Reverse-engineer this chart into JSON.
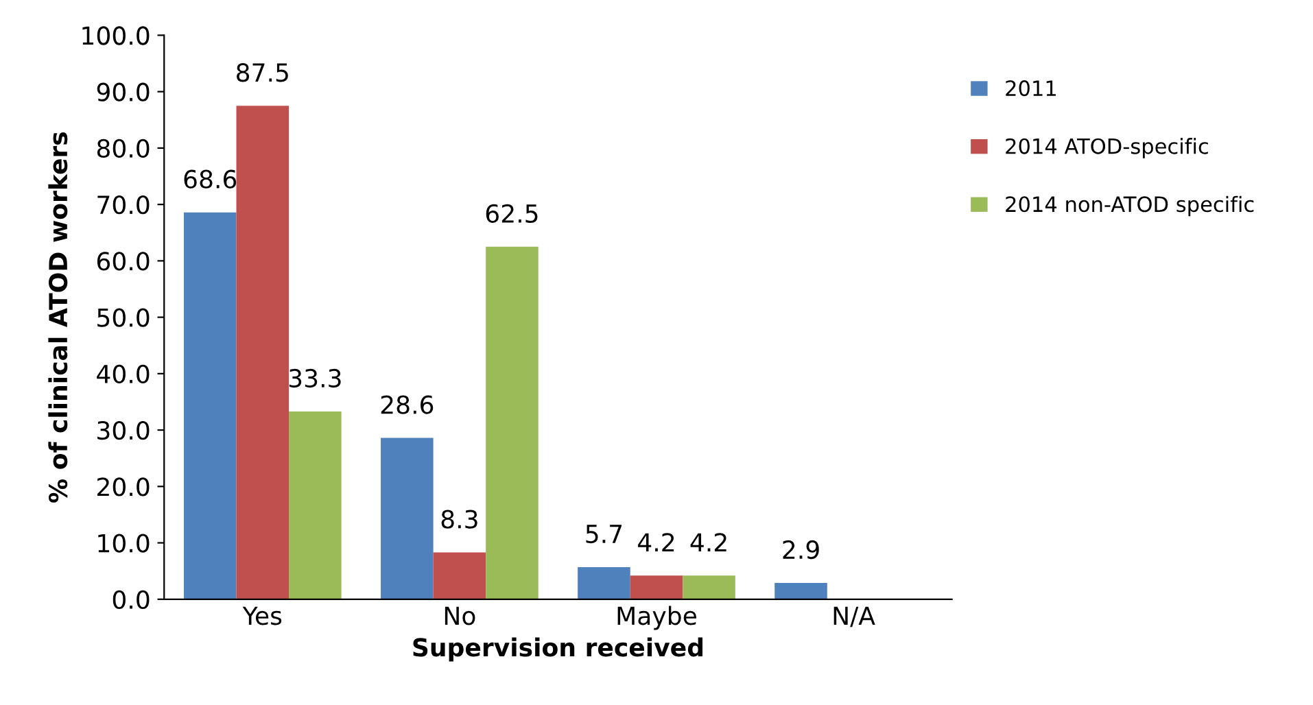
{
  "chart_data": {
    "type": "bar",
    "xlabel": "Supervision received",
    "ylabel": "% of clinical ATOD workers",
    "categories": [
      "Yes",
      "No",
      "Maybe",
      "N/A"
    ],
    "series": [
      {
        "name": "2011",
        "color": "#4f81bd",
        "values": [
          68.6,
          28.6,
          5.7,
          2.9
        ]
      },
      {
        "name": "2014 ATOD-specific",
        "color": "#c0504d",
        "values": [
          87.5,
          8.3,
          4.2,
          null
        ]
      },
      {
        "name": "2014 non-ATOD specific",
        "color": "#9bbb59",
        "values": [
          33.3,
          62.5,
          4.2,
          null
        ]
      }
    ],
    "ylim": [
      0,
      100
    ],
    "yticks": [
      {
        "value": 0,
        "label": "0.0"
      },
      {
        "value": 10,
        "label": "10.0"
      },
      {
        "value": 20,
        "label": "20.0"
      },
      {
        "value": 30,
        "label": "30.0"
      },
      {
        "value": 40,
        "label": "40.0"
      },
      {
        "value": 50,
        "label": "50.0"
      },
      {
        "value": 60,
        "label": "60.0"
      },
      {
        "value": 70,
        "label": "70.0"
      },
      {
        "value": 80,
        "label": "80.0"
      },
      {
        "value": 90,
        "label": "90.0"
      },
      {
        "value": 100,
        "label": "100.0"
      }
    ],
    "data_labels": true,
    "grid": false,
    "legend": "right"
  }
}
